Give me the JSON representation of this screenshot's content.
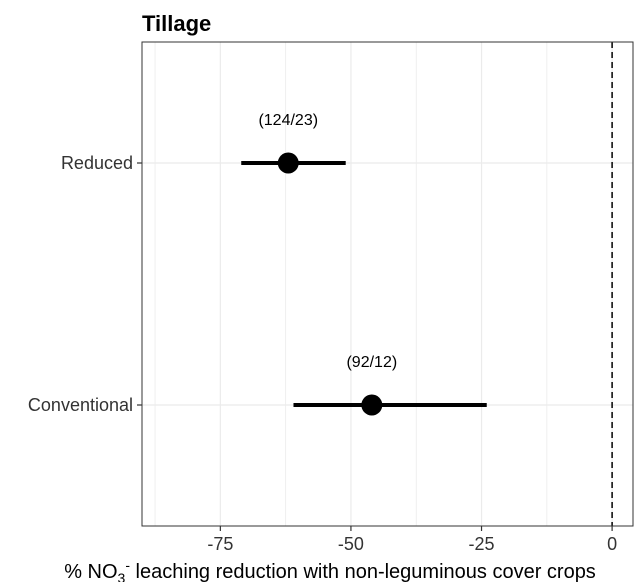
{
  "chart_data": {
    "type": "forest",
    "title": "Tillage",
    "xlabel_parts": [
      "% NO",
      "3",
      "-",
      " leaching reduction with non-leguminous cover crops"
    ],
    "xlim": [
      -90,
      4
    ],
    "xticks": [
      -75,
      -50,
      -25,
      0
    ],
    "xtick_labels": [
      "-75",
      "-50",
      "-25",
      "0"
    ],
    "reference_line": 0,
    "grid": true,
    "categories": [
      "Reduced",
      "Conventional"
    ],
    "estimates": [
      {
        "category": "Reduced",
        "mean": -62,
        "ci_low": -71,
        "ci_high": -51,
        "label": "(124/23)"
      },
      {
        "category": "Conventional",
        "mean": -46,
        "ci_low": -61,
        "ci_high": -24,
        "label": "(92/12)"
      }
    ],
    "colors": {
      "point": "#000000",
      "grid": "#ebebeb",
      "panel_border": "#333333",
      "reference": "#000000"
    }
  }
}
